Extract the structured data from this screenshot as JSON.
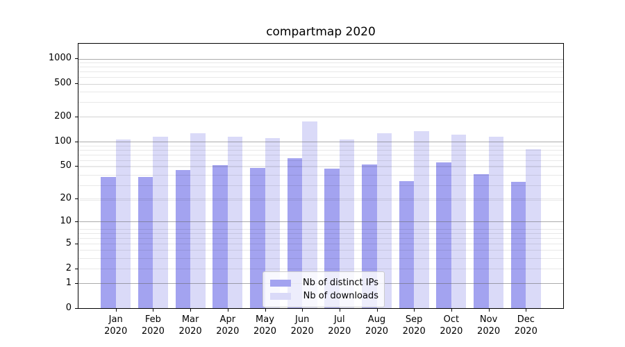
{
  "chart_data": {
    "type": "bar",
    "title": "compartmap 2020",
    "categories": [
      "Jan 2020",
      "Feb 2020",
      "Mar 2020",
      "Apr 2020",
      "May 2020",
      "Jun 2020",
      "Jul 2020",
      "Aug 2020",
      "Sep 2020",
      "Oct 2020",
      "Nov 2020",
      "Dec 2020"
    ],
    "series": [
      {
        "name": "Nb of distinct IPs",
        "color": "#a3a3f0",
        "values": [
          37,
          37,
          45,
          51,
          48,
          63,
          47,
          52,
          33,
          56,
          40,
          32
        ]
      },
      {
        "name": "Nb of downloads",
        "color": "#dadaf8",
        "values": [
          105,
          114,
          127,
          115,
          110,
          175,
          105,
          127,
          134,
          120,
          114,
          80
        ]
      }
    ],
    "xlabel": "",
    "ylabel": "",
    "y_ticks": [
      0,
      1,
      2,
      5,
      10,
      20,
      50,
      100,
      200,
      500,
      1000
    ],
    "y_scale": "log10(1+value)",
    "y_major_gridlines": [
      1,
      10,
      100,
      1000
    ],
    "ylim": [
      0,
      1235
    ],
    "grid": true,
    "legend_position": "lower center"
  },
  "colors": {
    "background": "#ffffff",
    "axis": "#000000",
    "text": "#000000",
    "grid_major": "rgba(102,102,102,0.55)",
    "grid_minor": "rgba(0,0,0,0.09)",
    "legend_border": "#cccccc",
    "legend_background": "rgba(255,255,255,0.8)"
  }
}
